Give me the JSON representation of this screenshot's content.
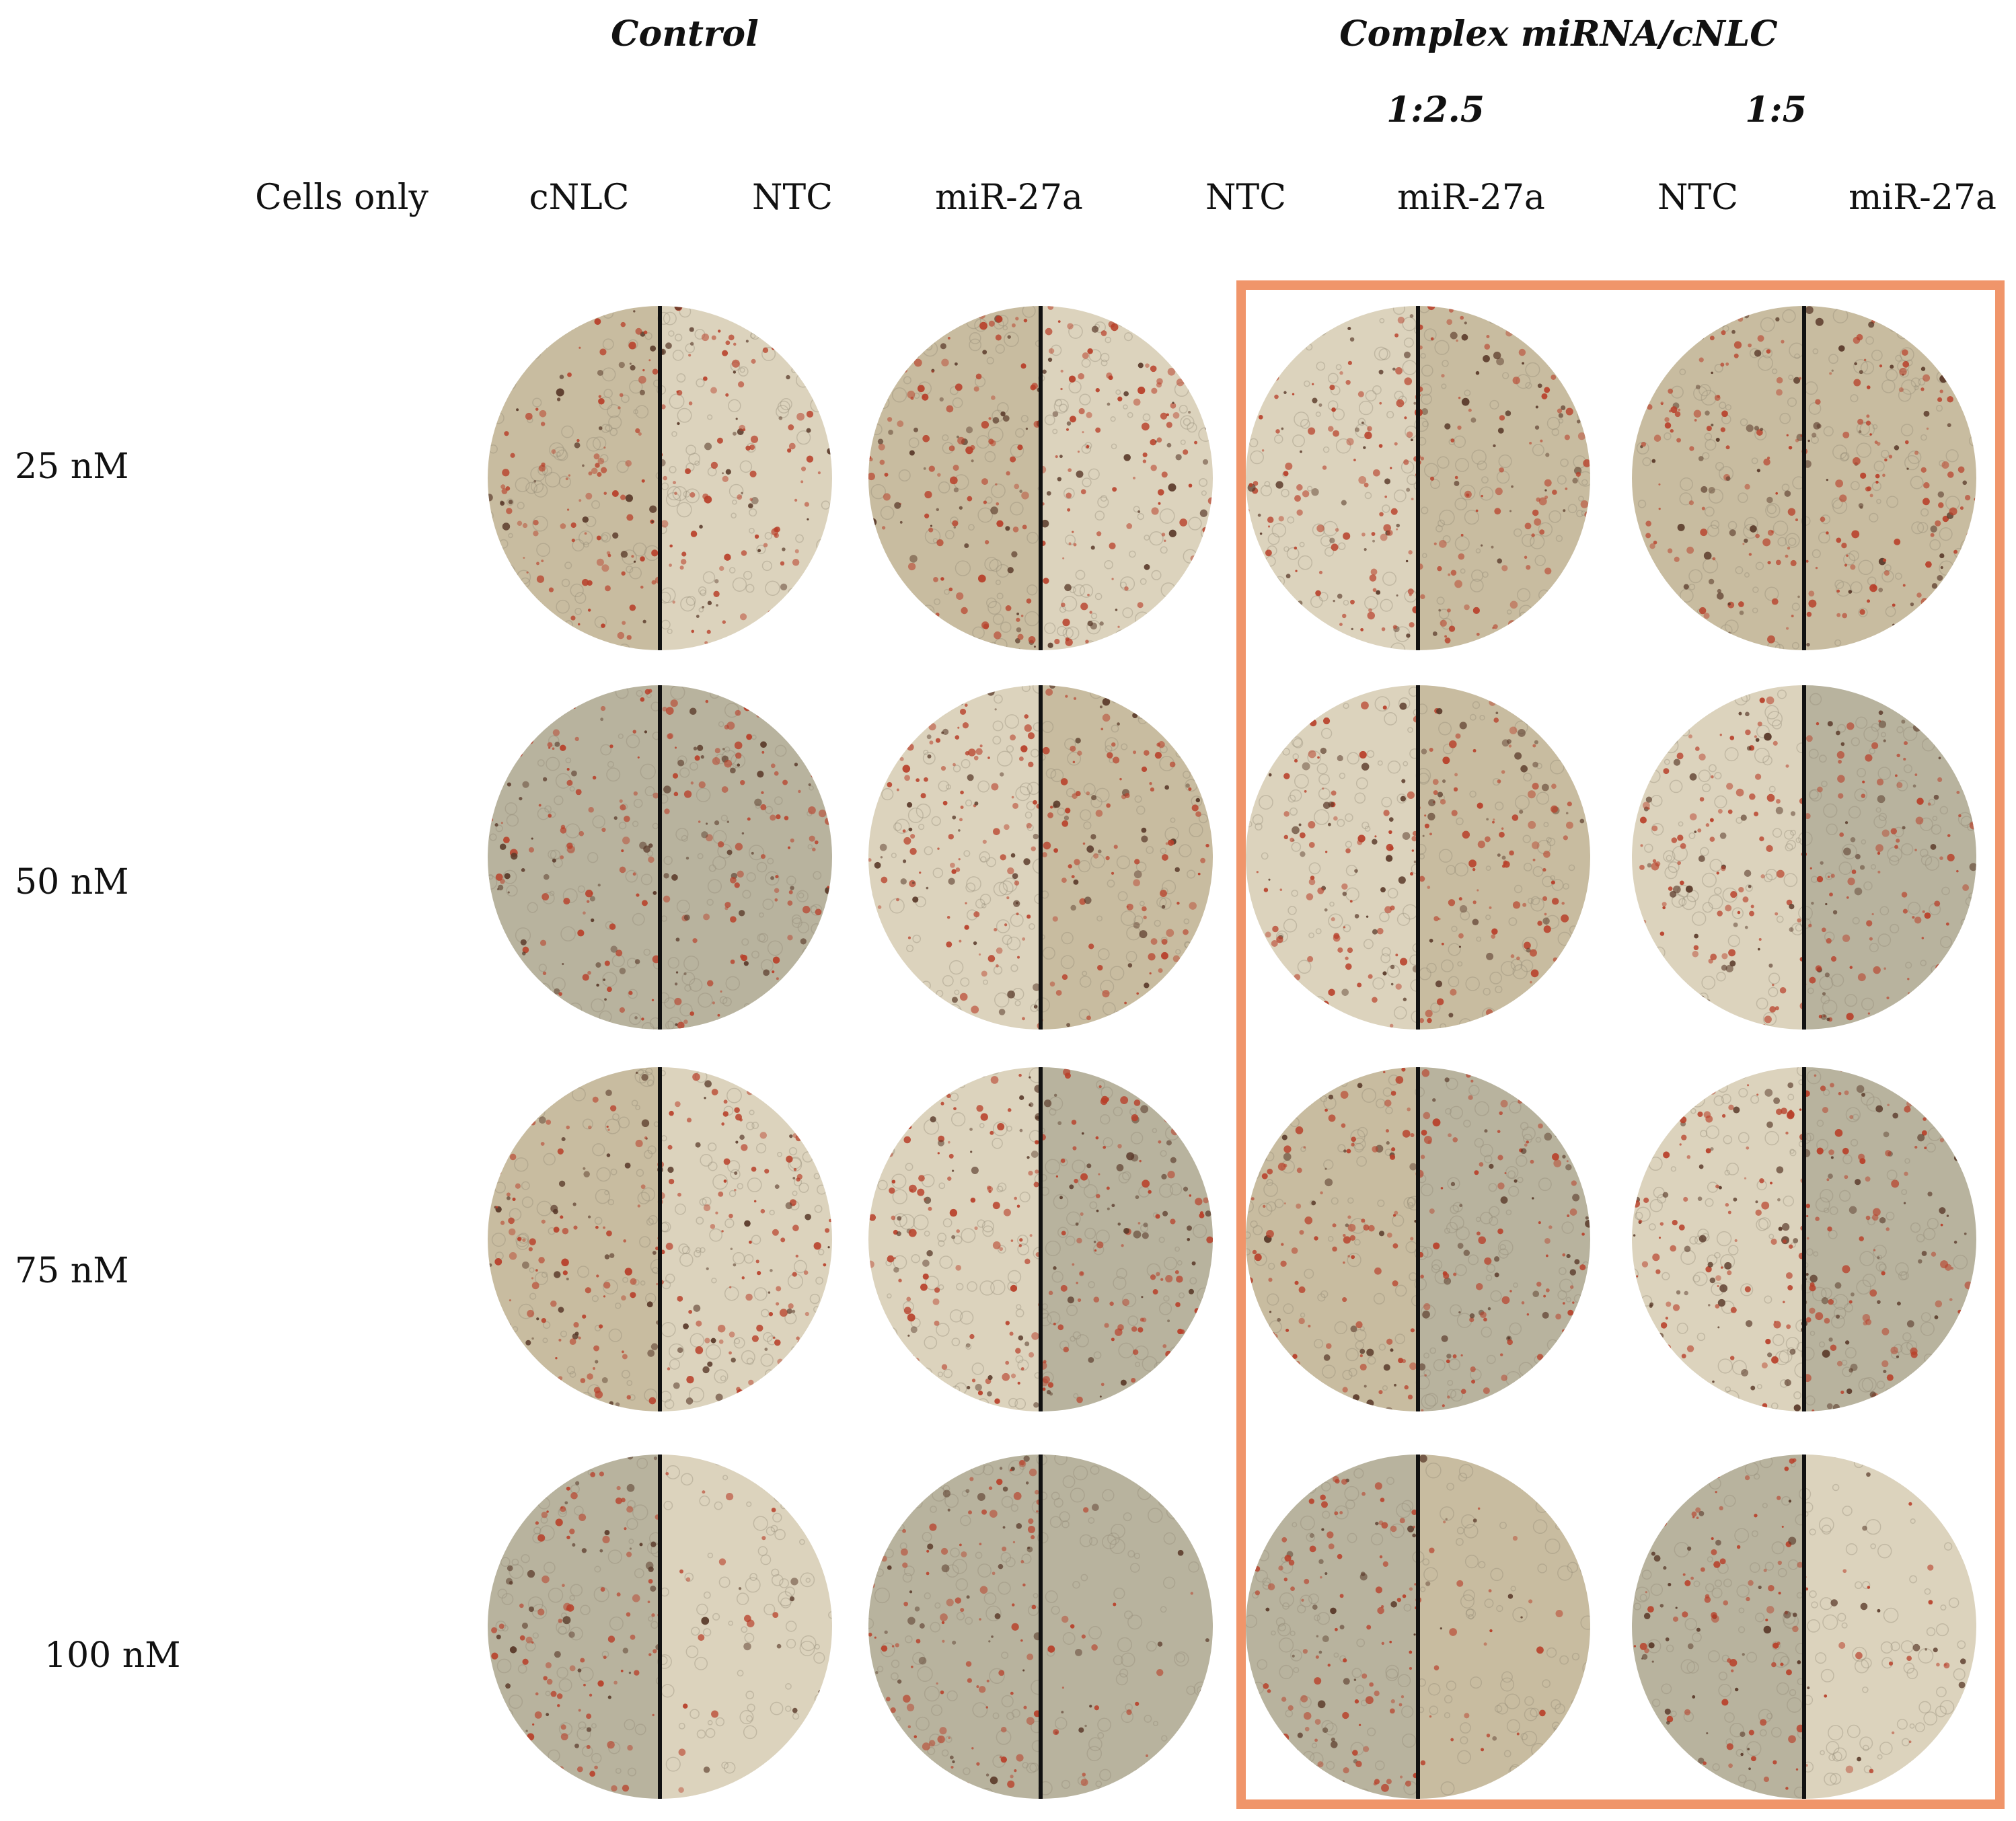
{
  "headers": {
    "control": "Control",
    "complex": "Complex miRNA/cNLC",
    "ratio_1": "1:2.5",
    "ratio_2": "1:5"
  },
  "columns": [
    "Cells only",
    "cNLC",
    "NTC",
    "miR-27a",
    "NTC",
    "miR-27a",
    "NTC",
    "miR-27a"
  ],
  "rows": [
    "25 nM",
    "50 nM",
    "75 nM",
    "100 nM"
  ],
  "colors": {
    "highlight_border": "#f0956a",
    "divider": "#111111",
    "stain_red": "#b8402a",
    "stain_dark": "#5a3a2a",
    "cell_bg_light": "#dcd3bd",
    "cell_bg_mid": "#c8bca0",
    "cell_bg_grey": "#b8b39e"
  }
}
